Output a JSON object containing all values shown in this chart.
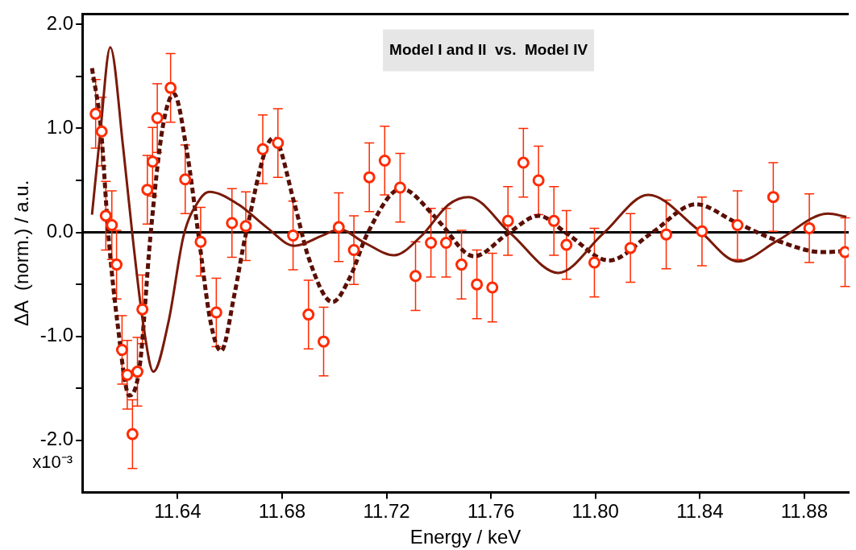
{
  "chart_data": {
    "type": "scatter",
    "xlabel": "Energy / keV",
    "ylabel": "ΔA  (norm.) / a.u.",
    "annotations": [
      "Model I and II  vs.  Model IV",
      "x10⁻³"
    ],
    "xlim": [
      11.6035,
      11.897
    ],
    "xticks": [
      11.64,
      11.68,
      11.72,
      11.76,
      {
        "value": 11.8,
        "label": "11.80"
      },
      11.84,
      11.88
    ],
    "ylim": [
      -2.5,
      2.1
    ],
    "yticks": [
      {
        "value": 2,
        "label": "2.0"
      },
      {
        "value": 1.5,
        "label": null
      },
      {
        "value": 1,
        "label": "1.0"
      },
      {
        "value": 0.5,
        "label": null
      },
      {
        "value": 0,
        "label": "0.0"
      },
      {
        "value": -0.5,
        "label": null
      },
      {
        "value": -1,
        "label": "-1.0"
      },
      {
        "value": -1.5,
        "label": null
      },
      {
        "value": -2,
        "label": "-2.0"
      }
    ],
    "ref_lines": [
      {
        "axis": "y",
        "value": 0,
        "color": "#000000"
      }
    ],
    "series": [
      {
        "type": "line",
        "color": "#7a1a0a",
        "line_style": "solid",
        "marker": "none",
        "x": [
          11.6072,
          11.6103,
          11.6142,
          11.6192,
          11.6227,
          11.6267,
          11.6307,
          11.6365,
          11.6423,
          11.648,
          11.6521,
          11.6632,
          11.674,
          11.6847,
          11.6955,
          11.7019,
          11.7116,
          11.7229,
          11.7331,
          11.7439,
          11.7514,
          11.7675,
          11.7858,
          11.803,
          11.8202,
          11.8396,
          11.8546,
          11.8697,
          11.889,
          11.8961
        ],
        "values": [
          0.17,
          0.94,
          1.78,
          0.8,
          -0.03,
          -0.86,
          -1.34,
          -0.86,
          -0.03,
          0.3,
          0.39,
          0.27,
          0.05,
          -0.13,
          -0.03,
          0.03,
          -0.1,
          -0.22,
          -0.04,
          0.27,
          0.34,
          -0.01,
          -0.39,
          -0.01,
          0.36,
          0.02,
          -0.28,
          -0.08,
          0.18,
          0.15
        ]
      },
      {
        "type": "line",
        "color": "#5a0f05",
        "line_style": "dashed",
        "marker": "none",
        "x": [
          11.6072,
          11.6106,
          11.6135,
          11.6169,
          11.6215,
          11.6255,
          11.6296,
          11.6342,
          11.6386,
          11.6434,
          11.648,
          11.6526,
          11.6566,
          11.6618,
          11.666,
          11.6767,
          11.6847,
          11.6901,
          11.6993,
          11.7062,
          11.7127,
          11.7256,
          11.7385,
          11.7406,
          11.7535,
          11.7665,
          11.7783,
          11.789,
          11.8052,
          11.8213,
          11.8385,
          11.8535,
          11.8697,
          11.8869,
          11.8961
        ],
        "values": [
          1.58,
          1.0,
          -0.03,
          -0.86,
          -1.57,
          -1.28,
          -0.03,
          1.0,
          1.33,
          0.8,
          -0.03,
          -0.86,
          -1.14,
          -0.59,
          -0.03,
          0.91,
          0.28,
          -0.24,
          -0.67,
          -0.42,
          -0.01,
          0.42,
          0.15,
          0.09,
          -0.23,
          -0.01,
          0.16,
          -0.01,
          -0.27,
          -0.01,
          0.27,
          0.1,
          -0.08,
          -0.19,
          -0.18
        ]
      },
      {
        "type": "scatter",
        "color": "#ff2a00",
        "marker": "circle",
        "x": [
          11.6086,
          11.6109,
          11.6125,
          11.6148,
          11.6166,
          11.6187,
          11.6207,
          11.6227,
          11.6246,
          11.6265,
          11.6284,
          11.6304,
          11.6322,
          11.6373,
          11.6429,
          11.6488,
          11.6548,
          11.6608,
          11.6661,
          11.6726,
          11.6784,
          11.6842,
          11.6901,
          11.6959,
          11.7017,
          11.7075,
          11.7134,
          11.7193,
          11.7252,
          11.7311,
          11.737,
          11.7428,
          11.7487,
          11.7546,
          11.7605,
          11.7665,
          11.7724,
          11.7782,
          11.7841,
          11.7889,
          11.7996,
          11.8134,
          11.8271,
          11.8408,
          11.8544,
          11.8681,
          11.8819,
          11.8956
        ],
        "values": [
          1.14,
          0.97,
          0.16,
          0.07,
          -0.31,
          -1.13,
          -1.37,
          -1.94,
          -1.34,
          -0.74,
          0.41,
          0.68,
          1.1,
          1.39,
          0.51,
          -0.09,
          -0.77,
          0.09,
          0.06,
          0.8,
          0.86,
          -0.03,
          -0.79,
          -1.05,
          0.05,
          -0.17,
          0.53,
          0.69,
          0.43,
          -0.42,
          -0.1,
          -0.1,
          -0.31,
          -0.5,
          -0.53,
          0.11,
          0.67,
          0.5,
          0.11,
          -0.12,
          -0.29,
          -0.15,
          -0.02,
          0.01,
          0.07,
          0.34,
          0.04,
          -0.19
        ],
        "errors": [
          0.33,
          0.33,
          0.33,
          0.33,
          0.33,
          0.33,
          0.33,
          0.33,
          0.33,
          0.33,
          0.33,
          0.33,
          0.33,
          0.33,
          0.33,
          0.33,
          0.33,
          0.33,
          0.33,
          0.33,
          0.33,
          0.33,
          0.33,
          0.33,
          0.33,
          0.33,
          0.33,
          0.33,
          0.33,
          0.33,
          0.33,
          0.33,
          0.33,
          0.33,
          0.33,
          0.33,
          0.33,
          0.33,
          0.33,
          0.33,
          0.33,
          0.33,
          0.33,
          0.33,
          0.33,
          0.33,
          0.33,
          0.33
        ]
      }
    ]
  }
}
